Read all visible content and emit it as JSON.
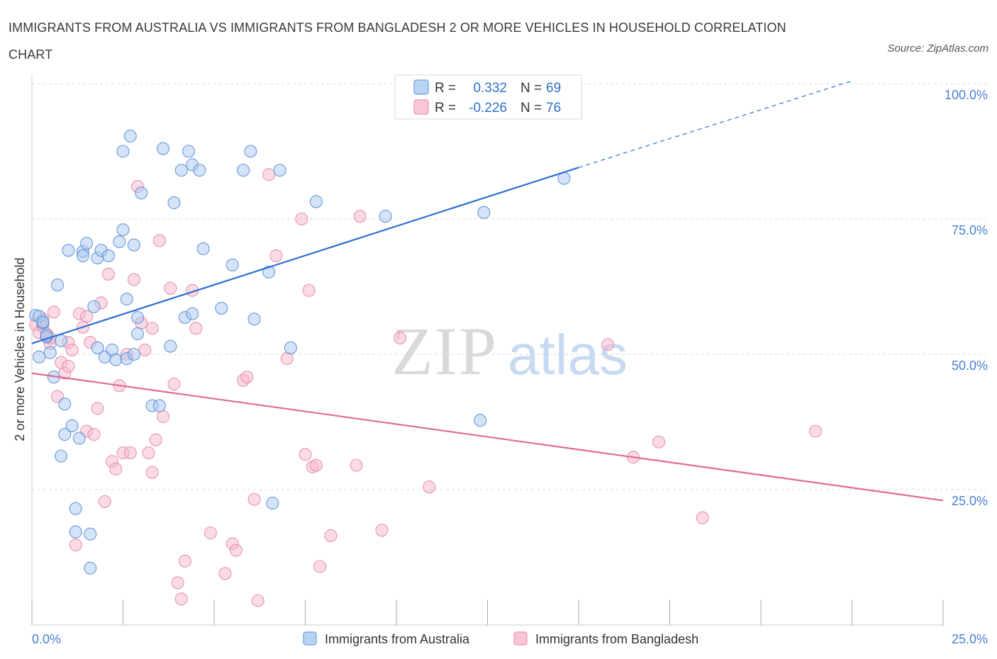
{
  "title": "IMMIGRANTS FROM AUSTRALIA VS IMMIGRANTS FROM BANGLADESH 2 OR MORE VEHICLES IN HOUSEHOLD CORRELATION CHART",
  "source": "Source: ZipAtlas.com",
  "watermark": {
    "zip": "ZIP",
    "atlas": "atlas"
  },
  "colors": {
    "australia_fill": "#a9c8f0",
    "australia_stroke": "#5b8fd6",
    "australia_line": "#2e6fd0",
    "bangladesh_fill": "#f5b8cb",
    "bangladesh_stroke": "#e58aa8",
    "bangladesh_line": "#e06a96",
    "tick_text": "#4a7fd0",
    "grid": "#d8d8d8"
  },
  "legend": {
    "r_label": "R =",
    "n_label": "N =",
    "rows": [
      {
        "r": "0.332",
        "n": "69"
      },
      {
        "r": "-0.226",
        "n": "76"
      }
    ]
  },
  "bottom_legend": [
    "Immigrants from Australia",
    "Immigrants from Bangladesh"
  ],
  "chart_data": {
    "type": "scatter",
    "ylabel": "2 or more Vehicles in Household",
    "xlim": [
      0,
      25
    ],
    "ylim": [
      0,
      100
    ],
    "x_tick_labels": [
      "0.0%",
      "25.0%"
    ],
    "y_ticks": [
      25,
      50,
      75,
      100
    ],
    "y_tick_labels": [
      "25.0%",
      "50.0%",
      "75.0%",
      "100.0%"
    ],
    "grid": true,
    "series": [
      {
        "name": "Immigrants from Australia",
        "r": 0.332,
        "n": 69,
        "trend": {
          "x0": 0,
          "y0": 52,
          "x1": 15,
          "y1": 84.5,
          "dash_to_x": 22.5,
          "dash_to_y": 100.5
        },
        "points": [
          [
            0.1,
            57.2
          ],
          [
            0.2,
            49.5
          ],
          [
            0.3,
            55.8
          ],
          [
            0.4,
            53.2
          ],
          [
            0.5,
            50.3
          ],
          [
            0.6,
            45.8
          ],
          [
            0.7,
            62.8
          ],
          [
            0.8,
            52.5
          ],
          [
            0.8,
            31.2
          ],
          [
            0.9,
            35.2
          ],
          [
            0.9,
            40.8
          ],
          [
            1.0,
            69.2
          ],
          [
            1.1,
            36.8
          ],
          [
            1.2,
            21.5
          ],
          [
            1.2,
            17.2
          ],
          [
            1.3,
            34.5
          ],
          [
            1.4,
            69.0
          ],
          [
            1.4,
            68.2
          ],
          [
            1.5,
            70.5
          ],
          [
            1.6,
            16.8
          ],
          [
            1.6,
            10.5
          ],
          [
            1.7,
            58.8
          ],
          [
            1.8,
            67.8
          ],
          [
            1.8,
            51.2
          ],
          [
            1.9,
            69.2
          ],
          [
            2.0,
            49.5
          ],
          [
            2.1,
            68.2
          ],
          [
            2.2,
            50.8
          ],
          [
            2.3,
            49.0
          ],
          [
            2.4,
            70.8
          ],
          [
            2.5,
            73.0
          ],
          [
            2.5,
            87.5
          ],
          [
            2.6,
            49.2
          ],
          [
            2.6,
            60.2
          ],
          [
            2.7,
            90.3
          ],
          [
            2.8,
            70.2
          ],
          [
            2.8,
            50.0
          ],
          [
            2.9,
            56.8
          ],
          [
            2.9,
            53.8
          ],
          [
            3.0,
            79.8
          ],
          [
            3.3,
            40.5
          ],
          [
            3.5,
            40.5
          ],
          [
            3.6,
            88.0
          ],
          [
            3.8,
            51.5
          ],
          [
            3.9,
            78.0
          ],
          [
            4.1,
            84.0
          ],
          [
            4.2,
            56.8
          ],
          [
            4.3,
            87.5
          ],
          [
            4.4,
            57.5
          ],
          [
            4.4,
            85.0
          ],
          [
            4.6,
            84.0
          ],
          [
            4.7,
            69.5
          ],
          [
            5.2,
            58.5
          ],
          [
            5.5,
            66.5
          ],
          [
            5.8,
            84.0
          ],
          [
            6.0,
            87.5
          ],
          [
            6.1,
            56.5
          ],
          [
            6.5,
            65.2
          ],
          [
            6.6,
            22.5
          ],
          [
            6.8,
            84.0
          ],
          [
            7.1,
            51.2
          ],
          [
            7.8,
            78.2
          ],
          [
            9.7,
            75.5
          ],
          [
            12.3,
            37.8
          ],
          [
            12.4,
            76.2
          ],
          [
            14.6,
            82.5
          ],
          [
            0.2,
            57.0
          ],
          [
            0.3,
            56.0
          ],
          [
            0.4,
            53.5
          ]
        ]
      },
      {
        "name": "Immigrants from Bangladesh",
        "r": -0.226,
        "n": 76,
        "trend": {
          "x0": 0,
          "y0": 46.5,
          "x1": 25,
          "y1": 23
        },
        "points": [
          [
            0.1,
            55.5
          ],
          [
            0.2,
            54.0
          ],
          [
            0.3,
            56.5
          ],
          [
            0.4,
            53.8
          ],
          [
            0.5,
            52.0
          ],
          [
            0.6,
            57.8
          ],
          [
            0.7,
            42.2
          ],
          [
            0.8,
            48.5
          ],
          [
            0.9,
            46.5
          ],
          [
            1.0,
            52.2
          ],
          [
            1.0,
            47.8
          ],
          [
            1.1,
            50.8
          ],
          [
            1.2,
            14.8
          ],
          [
            1.3,
            57.5
          ],
          [
            1.4,
            55.0
          ],
          [
            1.5,
            57.0
          ],
          [
            1.5,
            35.8
          ],
          [
            1.6,
            52.2
          ],
          [
            1.7,
            35.2
          ],
          [
            1.8,
            40.0
          ],
          [
            1.9,
            59.5
          ],
          [
            2.0,
            22.8
          ],
          [
            2.1,
            64.8
          ],
          [
            2.2,
            30.2
          ],
          [
            2.3,
            28.8
          ],
          [
            2.4,
            44.2
          ],
          [
            2.5,
            31.8
          ],
          [
            2.6,
            50.0
          ],
          [
            2.7,
            31.8
          ],
          [
            2.8,
            63.8
          ],
          [
            2.9,
            81.0
          ],
          [
            3.0,
            55.8
          ],
          [
            3.1,
            50.8
          ],
          [
            3.2,
            31.8
          ],
          [
            3.3,
            54.8
          ],
          [
            3.3,
            28.2
          ],
          [
            3.4,
            34.2
          ],
          [
            3.5,
            71.0
          ],
          [
            3.6,
            38.5
          ],
          [
            3.8,
            62.2
          ],
          [
            3.9,
            44.5
          ],
          [
            4.0,
            7.8
          ],
          [
            4.1,
            4.8
          ],
          [
            4.2,
            11.8
          ],
          [
            4.4,
            61.8
          ],
          [
            4.5,
            54.8
          ],
          [
            4.9,
            17.0
          ],
          [
            5.3,
            9.5
          ],
          [
            5.5,
            15.0
          ],
          [
            5.6,
            13.8
          ],
          [
            5.8,
            45.2
          ],
          [
            5.9,
            45.8
          ],
          [
            6.1,
            23.2
          ],
          [
            6.2,
            4.5
          ],
          [
            6.5,
            83.2
          ],
          [
            6.7,
            68.2
          ],
          [
            7.0,
            49.2
          ],
          [
            7.4,
            75.0
          ],
          [
            7.5,
            31.5
          ],
          [
            7.6,
            61.8
          ],
          [
            7.7,
            29.2
          ],
          [
            7.8,
            29.5
          ],
          [
            7.9,
            10.8
          ],
          [
            8.2,
            16.5
          ],
          [
            8.9,
            29.5
          ],
          [
            9.0,
            75.5
          ],
          [
            9.6,
            17.5
          ],
          [
            10.1,
            53.0
          ],
          [
            10.9,
            25.5
          ],
          [
            15.8,
            51.8
          ],
          [
            16.5,
            31.0
          ],
          [
            17.2,
            33.8
          ],
          [
            18.4,
            19.8
          ],
          [
            21.5,
            35.8
          ],
          [
            0.3,
            55.2
          ],
          [
            0.5,
            53.0
          ]
        ]
      }
    ]
  }
}
